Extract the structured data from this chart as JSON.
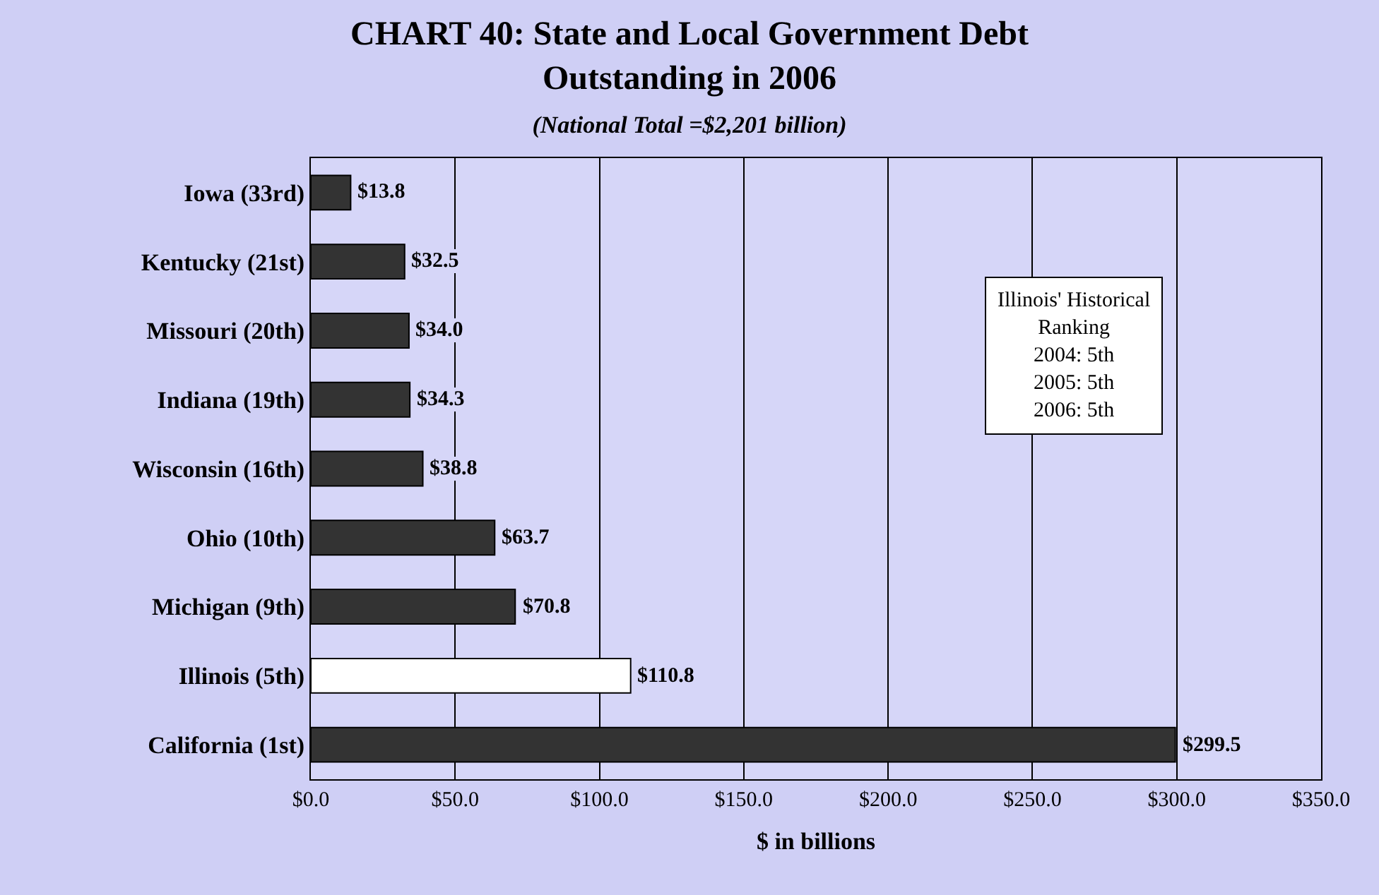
{
  "chart_data": {
    "type": "bar",
    "orientation": "horizontal",
    "title": "CHART 40: State and Local Government Debt Outstanding in 2006",
    "subtitle": "(National Total =$2,201 billion)",
    "xlabel": "$ in billions",
    "categories": [
      "Iowa (33rd)",
      "Kentucky (21st)",
      "Missouri (20th)",
      "Indiana (19th)",
      "Wisconsin (16th)",
      "Ohio (10th)",
      "Michigan (9th)",
      "Illinois (5th)",
      "California (1st)"
    ],
    "values": [
      13.8,
      32.5,
      34.0,
      34.3,
      38.8,
      63.7,
      70.8,
      110.8,
      299.5
    ],
    "value_labels": [
      "$13.8",
      "$32.5",
      "$34.0",
      "$34.3",
      "$38.8",
      "$63.7",
      "$70.8",
      "$110.8",
      "$299.5"
    ],
    "colors": [
      "#333333",
      "#333333",
      "#333333",
      "#333333",
      "#333333",
      "#333333",
      "#333333",
      "#ffffff",
      "#333333"
    ],
    "xlim": [
      0,
      350
    ],
    "xticks": [
      {
        "value": 0,
        "label": "$0.0"
      },
      {
        "value": 50,
        "label": "$50.0"
      },
      {
        "value": 100,
        "label": "$100.0"
      },
      {
        "value": 150,
        "label": "$150.0"
      },
      {
        "value": 200,
        "label": "$200.0"
      },
      {
        "value": 250,
        "label": "$250.0"
      },
      {
        "value": 300,
        "label": "$300.0"
      },
      {
        "value": 350,
        "label": "$350.0"
      }
    ],
    "grid": "x",
    "annotations": [
      "Illinois' Historical\nRanking\n2004: 5th\n2005: 5th\n2006: 5th"
    ]
  }
}
